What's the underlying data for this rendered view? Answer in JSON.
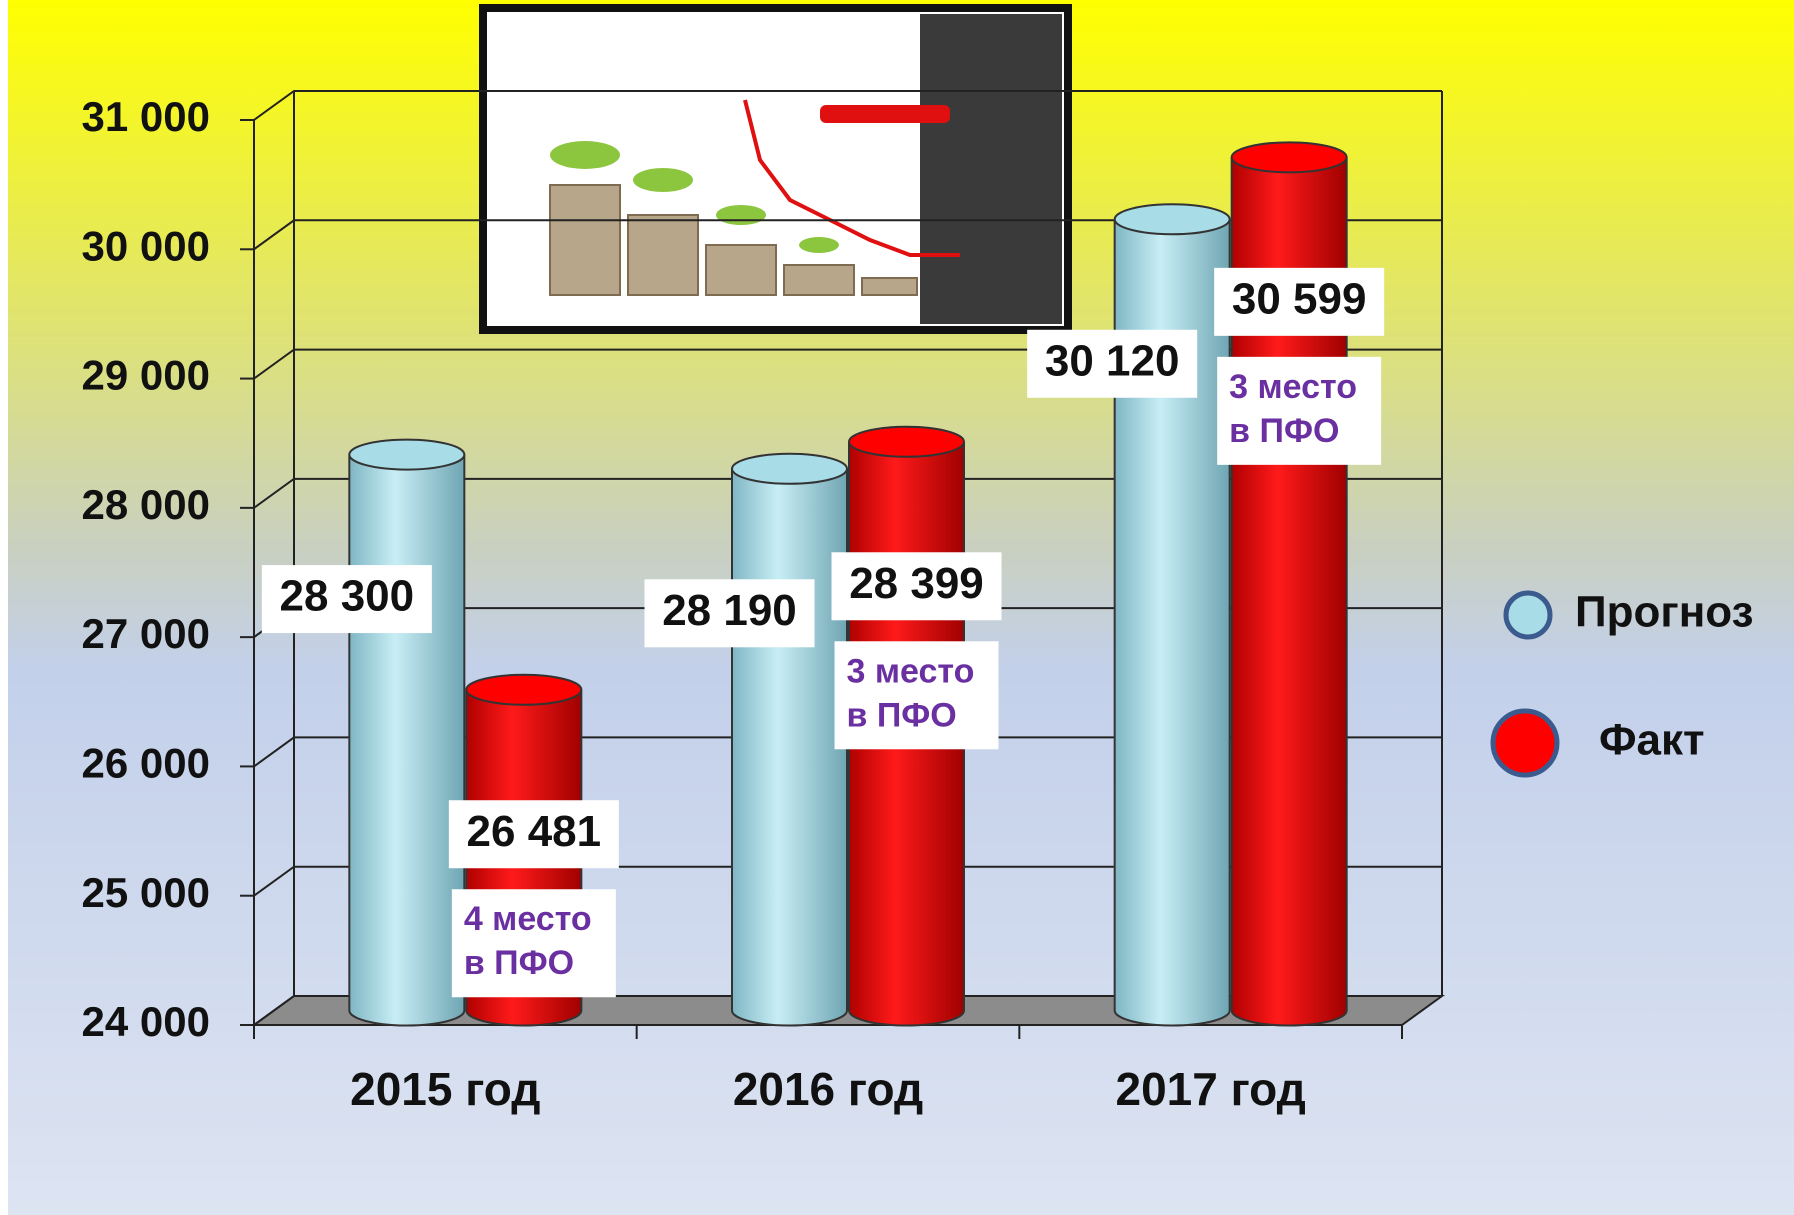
{
  "chart_data": {
    "type": "bar",
    "categories": [
      "2015 год",
      "2016 год",
      "2017 год"
    ],
    "series": [
      {
        "name": "Прогноз",
        "color": "#a8dce6",
        "values": [
          28300,
          28190,
          30120
        ],
        "value_labels": [
          "28 300",
          "28 190",
          "30 120"
        ]
      },
      {
        "name": "Факт",
        "color": "#ff0000",
        "values": [
          26481,
          28399,
          30599
        ],
        "value_labels": [
          "26 481",
          "28 399",
          "30 599"
        ]
      }
    ],
    "annotations": [
      [
        "4 место",
        "в ПФО"
      ],
      [
        "3 место",
        "в ПФО"
      ],
      [
        "3 место",
        "в ПФО"
      ]
    ],
    "ylim": [
      24000,
      31000
    ],
    "yticks": [
      {
        "value": 24000,
        "label": "24 000"
      },
      {
        "value": 25000,
        "label": "25 000"
      },
      {
        "value": 26000,
        "label": "26 000"
      },
      {
        "value": 27000,
        "label": "27 000"
      },
      {
        "value": 28000,
        "label": "28 000"
      },
      {
        "value": 29000,
        "label": "29 000"
      },
      {
        "value": 30000,
        "label": "30 000"
      },
      {
        "value": 31000,
        "label": "31 000"
      }
    ],
    "grid": true,
    "legend": "right"
  }
}
